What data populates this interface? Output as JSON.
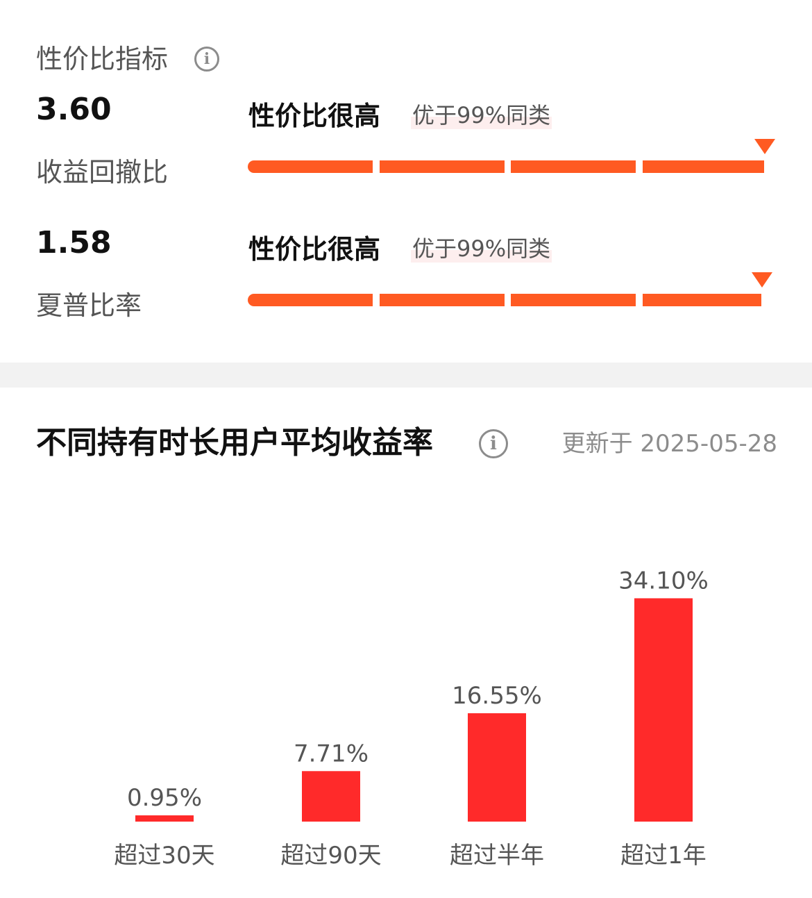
{
  "value_section": {
    "title": "性价比指标",
    "metrics": [
      {
        "value": "3.60",
        "label": "收益回撤比",
        "rating": "性价比很高",
        "percentile": "优于99%同类",
        "level_fraction": 0.99
      },
      {
        "value": "1.58",
        "label": "夏普比率",
        "rating": "性价比很高",
        "percentile": "优于99%同类",
        "level_fraction": 0.99
      }
    ]
  },
  "returns_section": {
    "title": "不同持有时长用户平均收益率",
    "update_text": "更新于 2025-05-28"
  },
  "colors": {
    "accent_orange": "#ff5a22",
    "bar_red": "#ff2a2a",
    "label_gray": "#555555"
  },
  "icons": [
    "info-icon",
    "info-icon",
    "triangle-marker-icon"
  ],
  "chart_data": {
    "type": "bar",
    "categories": [
      "超过30天",
      "超过90天",
      "超过半年",
      "超过1年"
    ],
    "values": [
      0.95,
      7.71,
      16.55,
      34.1
    ],
    "data_labels": [
      "0.95%",
      "7.71%",
      "16.55%",
      "34.10%"
    ],
    "title": "",
    "xlabel": "",
    "ylabel": "",
    "grid": false
  }
}
